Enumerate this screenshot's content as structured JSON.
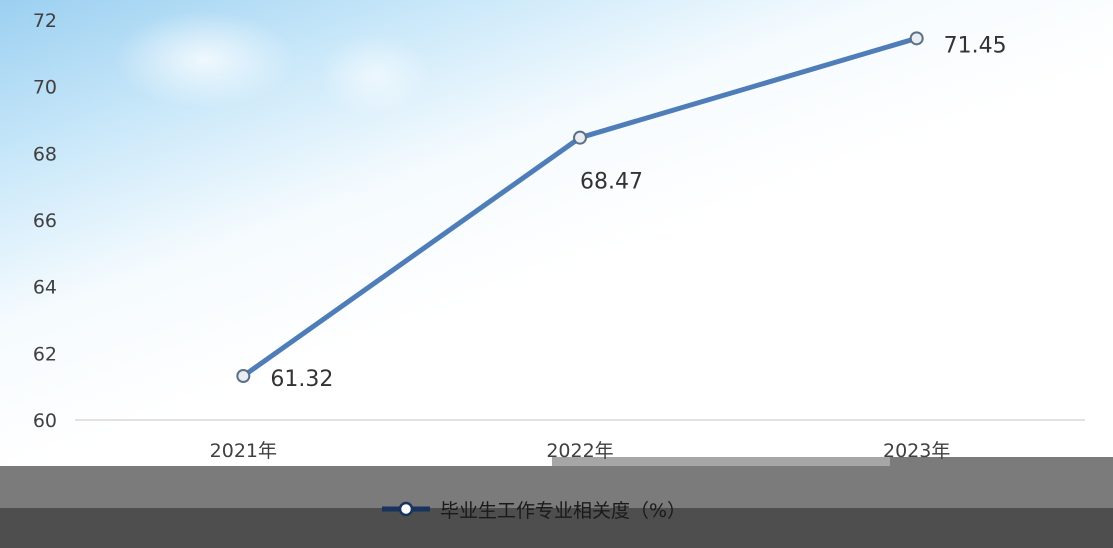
{
  "chart_data": {
    "type": "line",
    "categories": [
      "2021年",
      "2022年",
      "2023年"
    ],
    "series": [
      {
        "name": "毕业生工作专业相关度（%）",
        "values": [
          61.32,
          68.47,
          71.45
        ],
        "color": "#4f7db8"
      }
    ],
    "data_labels": [
      "61.32",
      "68.47",
      "71.45"
    ],
    "yticks": [
      60,
      62,
      64,
      66,
      68,
      70,
      72
    ],
    "ylim": [
      60,
      72
    ],
    "grid": false,
    "legend_position": "bottom-center",
    "marker": "hollow-circle"
  },
  "colors": {
    "line": "#4f7db8",
    "legend_line": "#17335e",
    "tick_text": "#404040",
    "axis": "#d9d9d9"
  }
}
